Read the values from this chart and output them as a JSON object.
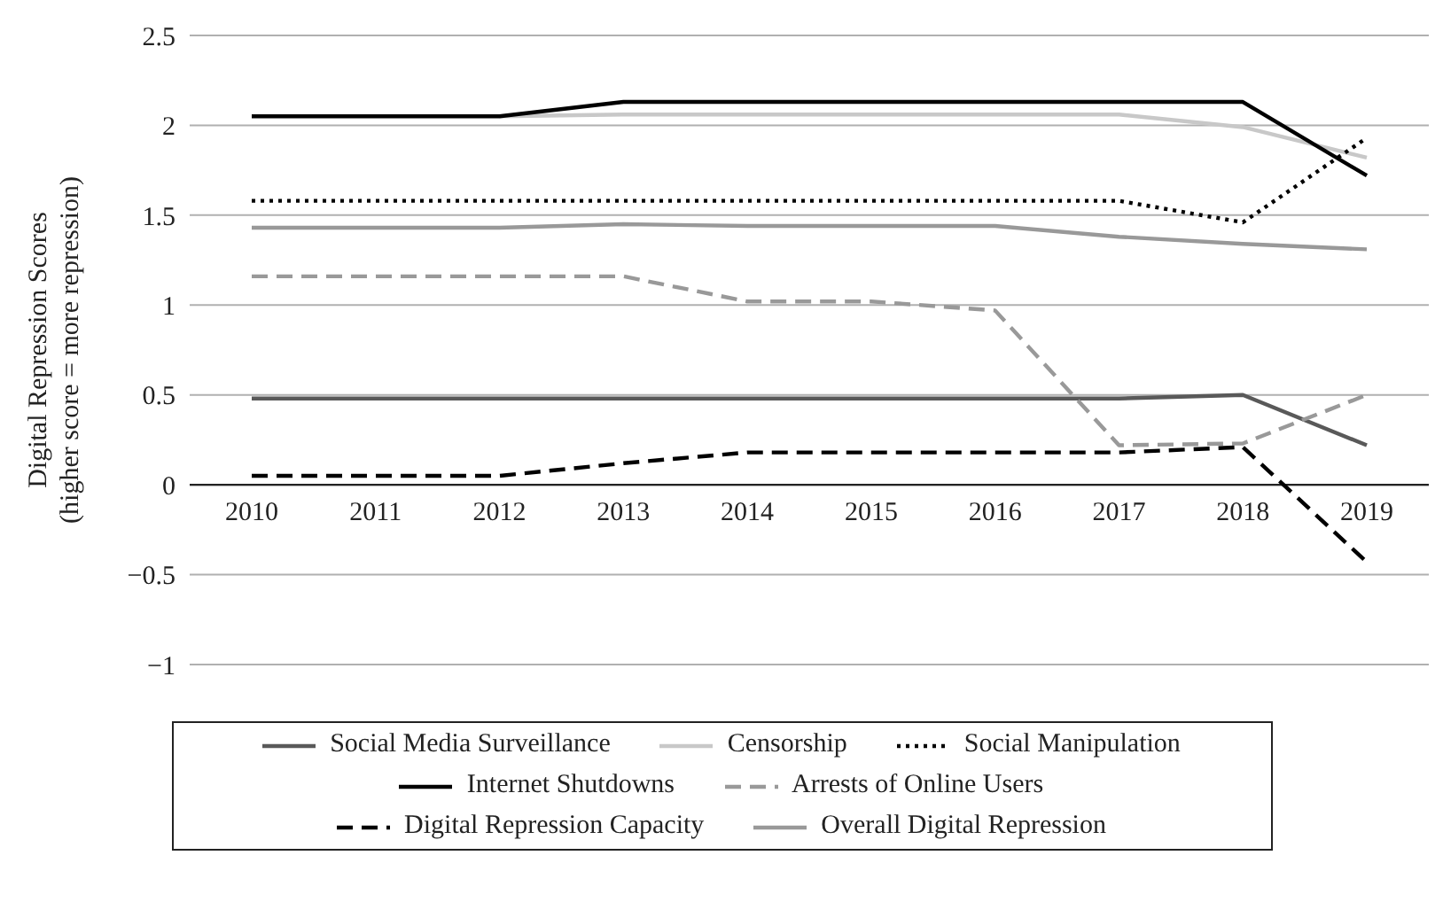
{
  "chart_data": {
    "type": "line",
    "ylabel": "Digital Repression Scores\n(higher score = more repression)",
    "categories": [
      "2010",
      "2011",
      "2012",
      "2013",
      "2014",
      "2015",
      "2016",
      "2017",
      "2018",
      "2019"
    ],
    "series": [
      {
        "name": "Social Media Surveillance",
        "color": "#595959",
        "line_style": "solid",
        "values": [
          0.48,
          0.48,
          0.48,
          0.48,
          0.48,
          0.48,
          0.48,
          0.48,
          0.5,
          0.22
        ]
      },
      {
        "name": "Censorship",
        "color": "#c8c8c8",
        "line_style": "solid",
        "values": [
          null,
          null,
          2.05,
          2.06,
          2.06,
          2.06,
          2.06,
          2.06,
          1.99,
          1.82
        ]
      },
      {
        "name": "Social Manipulation",
        "color": "#000000",
        "line_style": "dotted",
        "values": [
          1.58,
          1.58,
          1.58,
          1.58,
          1.58,
          1.58,
          1.58,
          1.58,
          1.46,
          1.93
        ]
      },
      {
        "name": "Internet Shutdowns",
        "color": "#000000",
        "line_style": "solid",
        "values": [
          2.05,
          2.05,
          2.05,
          2.13,
          2.13,
          2.13,
          2.13,
          2.13,
          2.13,
          1.72
        ]
      },
      {
        "name": "Arrests of Online Users",
        "color": "#999999",
        "line_style": "dashed",
        "values": [
          1.16,
          1.16,
          1.16,
          1.16,
          1.02,
          1.02,
          0.97,
          0.22,
          0.23,
          0.5
        ]
      },
      {
        "name": "Digital Repression Capacity",
        "color": "#000000",
        "line_style": "dashed",
        "values": [
          0.05,
          0.05,
          0.05,
          0.12,
          0.18,
          0.18,
          0.18,
          0.18,
          0.21,
          -0.43
        ]
      },
      {
        "name": "Overall Digital Repression",
        "color": "#999999",
        "line_style": "solid",
        "values": [
          1.43,
          1.43,
          1.43,
          1.45,
          1.44,
          1.44,
          1.44,
          1.38,
          1.34,
          1.31
        ]
      }
    ],
    "ylim": [
      -1,
      2.5
    ],
    "yticks": [
      {
        "value": -1,
        "label": "−1"
      },
      {
        "value": -0.5,
        "label": "−0.5"
      },
      0,
      0.5,
      1,
      1.5,
      2,
      2.5
    ],
    "grid": "y",
    "legend": "bottom",
    "marker": "none"
  }
}
